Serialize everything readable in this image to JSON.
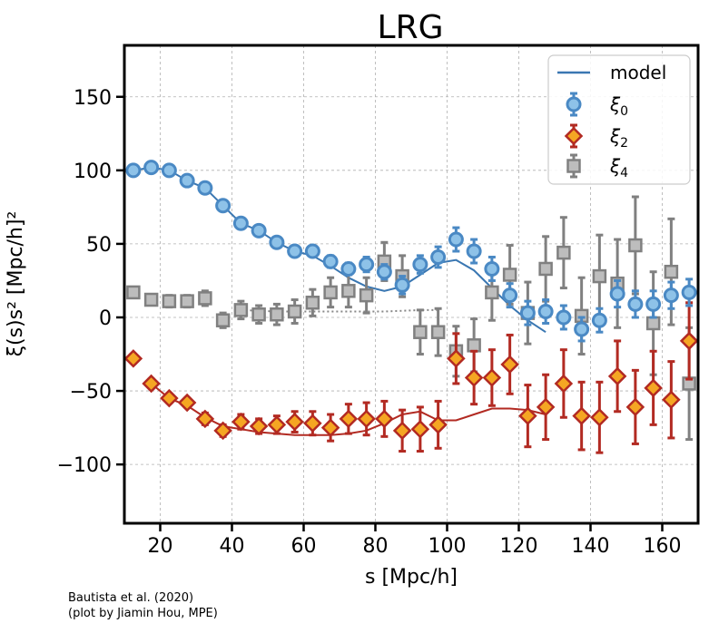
{
  "chart_data": {
    "type": "scatter",
    "title": "LRG",
    "xlabel": "s [Mpc/h]",
    "ylabel": "ξ(s)s² [Mpc/h]²",
    "xlim": [
      10,
      170
    ],
    "ylim": [
      -140,
      185
    ],
    "xticks": [
      20,
      40,
      60,
      80,
      100,
      120,
      140,
      160
    ],
    "yticks": [
      -100,
      -50,
      0,
      50,
      100,
      150
    ],
    "grid": true,
    "legend_position": "top-right",
    "legend": [
      {
        "key": "model",
        "label": "model"
      },
      {
        "key": "xi0",
        "label": "ξ",
        "sub": "0"
      },
      {
        "key": "xi2",
        "label": "ξ",
        "sub": "2"
      },
      {
        "key": "xi4",
        "label": "ξ",
        "sub": "4"
      }
    ],
    "colors": {
      "xi0_fill": "#8ec2e8",
      "xi0_edge": "#4a89c4",
      "xi2_fill": "#f5a623",
      "xi2_edge": "#b22a22",
      "xi4_fill": "#bdbdbd",
      "xi4_edge": "#808080",
      "model0": "#3a77b2",
      "model2": "#b22a22",
      "model4": "#888888"
    },
    "series": [
      {
        "name": "xi0",
        "x": [
          12.5,
          17.5,
          22.5,
          27.5,
          32.5,
          37.5,
          42.5,
          47.5,
          52.5,
          57.5,
          62.5,
          67.5,
          72.5,
          77.5,
          82.5,
          87.5,
          92.5,
          97.5,
          102.5,
          107.5,
          112.5,
          117.5,
          122.5,
          127.5,
          132.5,
          137.5,
          142.5,
          147.5,
          152.5,
          157.5,
          162.5,
          167.5
        ],
        "y": [
          100,
          102,
          100,
          93,
          88,
          76,
          64,
          59,
          51,
          45,
          45,
          38,
          33,
          36,
          31,
          22,
          36,
          41,
          53,
          45,
          33,
          15,
          3,
          4,
          0,
          -8,
          -2,
          16,
          9,
          9,
          15,
          17
        ],
        "err": [
          3,
          3,
          3,
          3,
          3,
          3,
          3,
          3,
          3,
          3,
          3,
          4,
          4,
          5,
          5,
          6,
          6,
          7,
          8,
          8,
          8,
          8,
          8,
          8,
          8,
          8,
          8,
          9,
          9,
          9,
          9,
          9
        ]
      },
      {
        "name": "xi2",
        "x": [
          12.5,
          17.5,
          22.5,
          27.5,
          32.5,
          37.5,
          42.5,
          47.5,
          52.5,
          57.5,
          62.5,
          67.5,
          72.5,
          77.5,
          82.5,
          87.5,
          92.5,
          97.5,
          102.5,
          107.5,
          112.5,
          117.5,
          122.5,
          127.5,
          132.5,
          137.5,
          142.5,
          147.5,
          152.5,
          157.5,
          162.5,
          167.5
        ],
        "y": [
          -28,
          -45,
          -55,
          -58,
          -69,
          -77,
          -71,
          -74,
          -73,
          -71,
          -72,
          -75,
          -69,
          -69,
          -69,
          -77,
          -76,
          -73,
          -28,
          -41,
          -41,
          -32,
          -67,
          -61,
          -45,
          -67,
          -68,
          -40,
          -61,
          -48,
          -56,
          -16
        ],
        "err": [
          3,
          3,
          3,
          3,
          4,
          4,
          5,
          5,
          6,
          7,
          8,
          9,
          10,
          11,
          12,
          14,
          15,
          16,
          17,
          18,
          19,
          20,
          21,
          22,
          23,
          23,
          24,
          24,
          25,
          25,
          26,
          26
        ]
      },
      {
        "name": "xi4",
        "x": [
          12.5,
          17.5,
          22.5,
          27.5,
          32.5,
          37.5,
          42.5,
          47.5,
          52.5,
          57.5,
          62.5,
          67.5,
          72.5,
          77.5,
          82.5,
          87.5,
          92.5,
          97.5,
          102.5,
          107.5,
          112.5,
          117.5,
          122.5,
          127.5,
          132.5,
          137.5,
          142.5,
          147.5,
          152.5,
          157.5,
          162.5,
          167.5
        ],
        "y": [
          17,
          12,
          11,
          11,
          13,
          -2,
          5,
          2,
          2,
          4,
          10,
          17,
          18,
          15,
          38,
          28,
          -10,
          -10,
          -23,
          -19,
          17,
          29,
          3,
          33,
          44,
          1,
          28,
          23,
          49,
          -4,
          31,
          -45
        ],
        "err": [
          3,
          3,
          4,
          4,
          5,
          5,
          6,
          6,
          7,
          8,
          9,
          10,
          11,
          12,
          13,
          14,
          15,
          16,
          17,
          18,
          19,
          20,
          21,
          22,
          24,
          26,
          28,
          30,
          33,
          35,
          36,
          38
        ]
      }
    ],
    "model": {
      "xi0": {
        "x": [
          12.5,
          17.5,
          22.5,
          27.5,
          32.5,
          37.5,
          42.5,
          47.5,
          52.5,
          57.5,
          62.5,
          67.5,
          72.5,
          77.5,
          82.5,
          87.5,
          92.5,
          97.5,
          102.5,
          107.5,
          112.5,
          117.5,
          122.5,
          127.5
        ],
        "y": [
          100,
          102,
          100,
          93,
          88,
          76,
          64,
          59,
          51,
          45,
          42,
          35,
          27,
          21,
          18,
          21,
          29,
          37,
          39,
          32,
          20,
          8,
          -2,
          -10
        ]
      },
      "xi2": {
        "x": [
          17.5,
          22.5,
          27.5,
          32.5,
          37.5,
          42.5,
          47.5,
          52.5,
          57.5,
          62.5,
          67.5,
          72.5,
          77.5,
          82.5,
          87.5,
          92.5,
          97.5,
          102.5,
          107.5,
          112.5,
          117.5,
          122.5,
          127.5
        ],
        "y": [
          -45,
          -55,
          -60,
          -68,
          -74,
          -76,
          -78,
          -79,
          -80,
          -80,
          -80,
          -79,
          -77,
          -72,
          -66,
          -64,
          -70,
          -70,
          -66,
          -62,
          -62,
          -63,
          -66
        ]
      },
      "xi4": {
        "x": [
          42.5,
          52.5,
          62.5,
          72.5,
          82.5,
          92.5,
          97.5
        ],
        "y": [
          5,
          4,
          4,
          4,
          4,
          5,
          5
        ]
      }
    }
  },
  "credit": {
    "line1": "Bautista et al. (2020)",
    "line2": "(plot by Jiamin Hou, MPE)"
  }
}
